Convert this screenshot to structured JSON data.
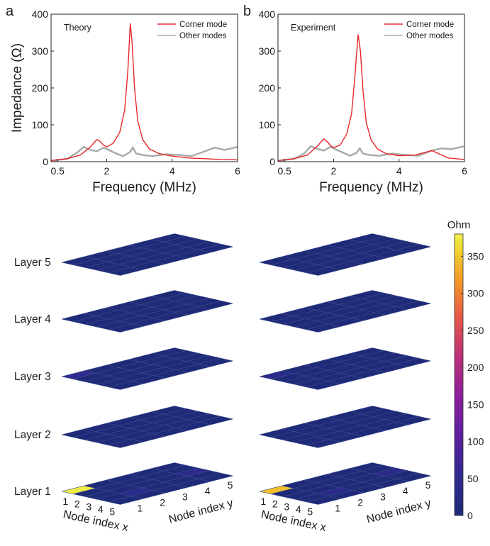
{
  "chart_data": [
    {
      "type": "line",
      "panel_label": "a",
      "annotation": "Theory",
      "xlabel": "Frequency (MHz)",
      "ylabel": "Impedance (Ω)",
      "xlim": [
        0.3,
        6
      ],
      "ylim": [
        0,
        400
      ],
      "xticks": [
        "0.5",
        "2",
        "4",
        "6"
      ],
      "xtick_values": [
        0.5,
        2,
        4,
        6
      ],
      "yticks": [
        "0",
        "100",
        "200",
        "300",
        "400"
      ],
      "ytick_values": [
        0,
        100,
        200,
        300,
        400
      ],
      "legend_position": "top-right",
      "grid": false,
      "series": [
        {
          "name": "Corner mode",
          "color": "#e8262b",
          "x": [
            0.3,
            0.8,
            1.2,
            1.5,
            1.7,
            1.8,
            1.9,
            2.0,
            2.2,
            2.4,
            2.55,
            2.65,
            2.72,
            2.78,
            2.85,
            2.95,
            3.1,
            3.3,
            3.6,
            4.0,
            4.5,
            5.0,
            5.5,
            6.0
          ],
          "y": [
            3,
            8,
            18,
            40,
            60,
            55,
            45,
            40,
            50,
            80,
            140,
            250,
            375,
            320,
            200,
            110,
            60,
            35,
            22,
            15,
            10,
            8,
            6,
            5
          ]
        },
        {
          "name": "Other modes",
          "color": "#a8a8a8",
          "x": [
            0.3,
            0.8,
            1.1,
            1.3,
            1.5,
            1.7,
            1.9,
            2.1,
            2.3,
            2.5,
            2.7,
            2.8,
            2.9,
            3.1,
            3.4,
            3.8,
            4.2,
            4.6,
            5.0,
            5.3,
            5.6,
            6.0
          ],
          "y": [
            2,
            8,
            25,
            40,
            32,
            28,
            38,
            30,
            22,
            15,
            25,
            38,
            22,
            18,
            15,
            20,
            18,
            15,
            28,
            38,
            32,
            40
          ]
        }
      ]
    },
    {
      "type": "line",
      "panel_label": "b",
      "annotation": "Experiment",
      "xlabel": "Frequency (MHz)",
      "ylabel": "",
      "xlim": [
        0.3,
        6
      ],
      "ylim": [
        0,
        400
      ],
      "xticks": [
        "0.5",
        "2",
        "4",
        "6"
      ],
      "xtick_values": [
        0.5,
        2,
        4,
        6
      ],
      "yticks": [
        "0",
        "100",
        "200",
        "300",
        "400"
      ],
      "ytick_values": [
        0,
        100,
        200,
        300,
        400
      ],
      "legend_position": "top-right",
      "grid": false,
      "series": [
        {
          "name": "Corner mode",
          "color": "#e8262b",
          "x": [
            0.3,
            0.8,
            1.2,
            1.5,
            1.7,
            1.8,
            1.9,
            2.0,
            2.2,
            2.4,
            2.55,
            2.65,
            2.75,
            2.82,
            2.9,
            3.0,
            3.15,
            3.35,
            3.6,
            4.0,
            4.5,
            5.0,
            5.5,
            6.0
          ],
          "y": [
            3,
            8,
            18,
            42,
            62,
            55,
            44,
            38,
            45,
            75,
            130,
            230,
            345,
            300,
            190,
            105,
            58,
            34,
            22,
            16,
            18,
            30,
            10,
            6
          ]
        },
        {
          "name": "Other modes",
          "color": "#a8a8a8",
          "x": [
            0.3,
            0.8,
            1.1,
            1.3,
            1.5,
            1.7,
            1.9,
            2.1,
            2.3,
            2.5,
            2.7,
            2.8,
            2.9,
            3.1,
            3.4,
            3.8,
            4.2,
            4.6,
            5.0,
            5.3,
            5.6,
            6.0
          ],
          "y": [
            2,
            8,
            22,
            42,
            35,
            30,
            40,
            32,
            24,
            16,
            24,
            36,
            22,
            18,
            16,
            22,
            18,
            16,
            30,
            36,
            34,
            42
          ]
        }
      ]
    },
    {
      "type": "heatmap",
      "title": "",
      "xlabel": "Node index x",
      "ylabel": "Node index y",
      "x_ticks": [
        "1",
        "2",
        "3",
        "4",
        "5"
      ],
      "y_ticks": [
        "1",
        "2",
        "3",
        "4",
        "5"
      ],
      "layers": [
        "Layer 5",
        "Layer 4",
        "Layer 3",
        "Layer 2",
        "Layer 1"
      ],
      "colorbar": {
        "label": "Ohm",
        "min": 0,
        "max": 380,
        "ticks": [
          "0",
          "50",
          "100",
          "150",
          "200",
          "250",
          "300",
          "350"
        ],
        "tick_values": [
          0,
          50,
          100,
          150,
          200,
          250,
          300,
          350
        ]
      },
      "grids": [
        {
          "panel": "left",
          "layers": [
            {
              "name": "Layer 5",
              "values": [
                [
                  3,
                  3,
                  3,
                  3,
                  3
                ],
                [
                  3,
                  3,
                  3,
                  3,
                  3
                ],
                [
                  3,
                  3,
                  3,
                  3,
                  3
                ],
                [
                  3,
                  3,
                  3,
                  3,
                  3
                ],
                [
                  3,
                  3,
                  3,
                  3,
                  3
                ]
              ]
            },
            {
              "name": "Layer 4",
              "values": [
                [
                  3,
                  3,
                  3,
                  3,
                  3
                ],
                [
                  3,
                  3,
                  3,
                  3,
                  3
                ],
                [
                  3,
                  3,
                  3,
                  3,
                  3
                ],
                [
                  3,
                  3,
                  3,
                  3,
                  3
                ],
                [
                  3,
                  3,
                  3,
                  3,
                  3
                ]
              ]
            },
            {
              "name": "Layer 3",
              "values": [
                [
                  55,
                  3,
                  3,
                  3,
                  3
                ],
                [
                  3,
                  3,
                  3,
                  3,
                  3
                ],
                [
                  3,
                  3,
                  3,
                  3,
                  3
                ],
                [
                  3,
                  3,
                  3,
                  3,
                  3
                ],
                [
                  3,
                  3,
                  3,
                  3,
                  3
                ]
              ]
            },
            {
              "name": "Layer 2",
              "values": [
                [
                  3,
                  3,
                  3,
                  3,
                  3
                ],
                [
                  3,
                  3,
                  3,
                  3,
                  3
                ],
                [
                  3,
                  3,
                  3,
                  3,
                  3
                ],
                [
                  3,
                  3,
                  3,
                  3,
                  3
                ],
                [
                  3,
                  3,
                  3,
                  3,
                  3
                ]
              ]
            },
            {
              "name": "Layer 1",
              "values": [
                [
                  375,
                  3,
                  3,
                  3,
                  3
                ],
                [
                  3,
                  3,
                  3,
                  45,
                  3
                ],
                [
                  3,
                  3,
                  3,
                  3,
                  3
                ],
                [
                  3,
                  3,
                  3,
                  3,
                  3
                ],
                [
                  3,
                  3,
                  45,
                  3,
                  3
                ]
              ]
            }
          ]
        },
        {
          "panel": "right",
          "layers": [
            {
              "name": "Layer 5",
              "values": [
                [
                  3,
                  3,
                  3,
                  3,
                  3
                ],
                [
                  3,
                  3,
                  3,
                  3,
                  3
                ],
                [
                  3,
                  3,
                  3,
                  3,
                  3
                ],
                [
                  3,
                  3,
                  3,
                  3,
                  3
                ],
                [
                  3,
                  3,
                  3,
                  3,
                  3
                ]
              ]
            },
            {
              "name": "Layer 4",
              "values": [
                [
                  3,
                  3,
                  3,
                  3,
                  3
                ],
                [
                  3,
                  3,
                  3,
                  3,
                  3
                ],
                [
                  3,
                  3,
                  3,
                  3,
                  3
                ],
                [
                  3,
                  3,
                  3,
                  3,
                  3
                ],
                [
                  3,
                  3,
                  3,
                  3,
                  3
                ]
              ]
            },
            {
              "name": "Layer 3",
              "values": [
                [
                  40,
                  3,
                  3,
                  3,
                  3
                ],
                [
                  3,
                  3,
                  3,
                  3,
                  3
                ],
                [
                  3,
                  3,
                  3,
                  3,
                  3
                ],
                [
                  3,
                  3,
                  3,
                  3,
                  3
                ],
                [
                  3,
                  3,
                  3,
                  3,
                  3
                ]
              ]
            },
            {
              "name": "Layer 2",
              "values": [
                [
                  3,
                  3,
                  3,
                  3,
                  3
                ],
                [
                  3,
                  3,
                  3,
                  3,
                  3
                ],
                [
                  3,
                  3,
                  3,
                  3,
                  3
                ],
                [
                  3,
                  3,
                  3,
                  3,
                  3
                ],
                [
                  3,
                  3,
                  3,
                  3,
                  3
                ]
              ]
            },
            {
              "name": "Layer 1",
              "values": [
                [
                  345,
                  3,
                  3,
                  3,
                  3
                ],
                [
                  3,
                  3,
                  3,
                  40,
                  3
                ],
                [
                  3,
                  3,
                  3,
                  3,
                  3
                ],
                [
                  3,
                  3,
                  3,
                  3,
                  3
                ],
                [
                  3,
                  3,
                  40,
                  3,
                  3
                ]
              ]
            }
          ]
        }
      ]
    }
  ]
}
